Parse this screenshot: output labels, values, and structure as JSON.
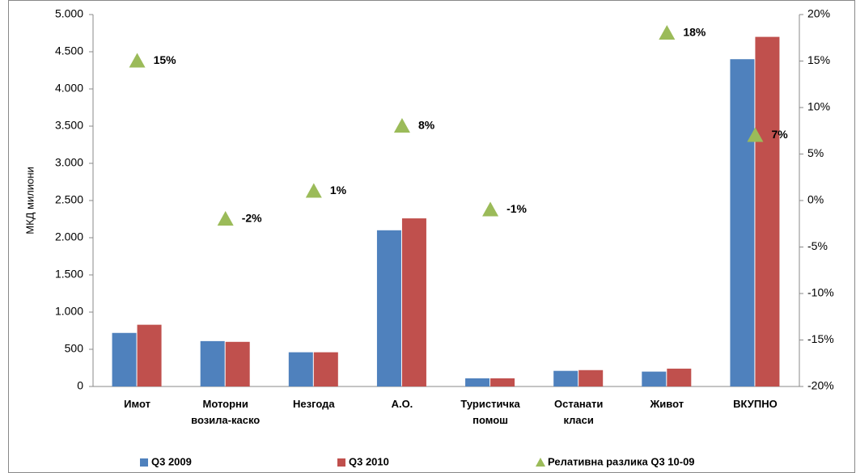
{
  "chart_data": {
    "type": "bar",
    "y_label": "МКД милиони",
    "categories": [
      "Имот",
      "Моторни возила-каско",
      "Незгода",
      "А.О.",
      "Туристичка помош",
      "Останати класи",
      "Живот",
      "ВКУПНО"
    ],
    "series": [
      {
        "name": "Q3 2009",
        "type": "bar",
        "color": "#4f81bd",
        "values": [
          720,
          610,
          460,
          2100,
          110,
          210,
          200,
          4400
        ]
      },
      {
        "name": "Q3 2010",
        "type": "bar",
        "color": "#c0504d",
        "values": [
          830,
          600,
          460,
          2260,
          110,
          220,
          240,
          4700
        ]
      },
      {
        "name": "Релативна разлика Q3 10-09",
        "type": "scatter",
        "marker": "triangle",
        "axis": "y2",
        "color": "#9bbb59",
        "values": [
          15,
          -2,
          1,
          8,
          -1,
          null,
          18,
          7
        ],
        "value_labels": [
          "15%",
          "-2%",
          "1%",
          "8%",
          "-1%",
          null,
          "18%",
          "7%"
        ]
      }
    ],
    "ylim": [
      0,
      5000
    ],
    "yticks": [
      0,
      500,
      {
        "value": 1000,
        "label": "1.000"
      },
      {
        "value": 1500,
        "label": "1.500"
      },
      {
        "value": 2000,
        "label": "2.000"
      },
      {
        "value": 2500,
        "label": "2.500"
      },
      {
        "value": 3000,
        "label": "3.000"
      },
      {
        "value": 3500,
        "label": "3.500"
      },
      {
        "value": 4000,
        "label": "4.000"
      },
      {
        "value": 4500,
        "label": "4.500"
      },
      {
        "value": 5000,
        "label": "5.000"
      }
    ],
    "y2lim": [
      -20,
      20
    ],
    "y2ticks": [
      {
        "value": -20,
        "label": "-20%"
      },
      {
        "value": -15,
        "label": "-15%"
      },
      {
        "value": -10,
        "label": "-10%"
      },
      {
        "value": -5,
        "label": "-5%"
      },
      {
        "value": 0,
        "label": "0%"
      },
      {
        "value": 5,
        "label": "5%"
      },
      {
        "value": 10,
        "label": "10%"
      },
      {
        "value": 15,
        "label": "15%"
      },
      {
        "value": 20,
        "label": "20%"
      }
    ],
    "grid": false,
    "legend": "bottom"
  }
}
